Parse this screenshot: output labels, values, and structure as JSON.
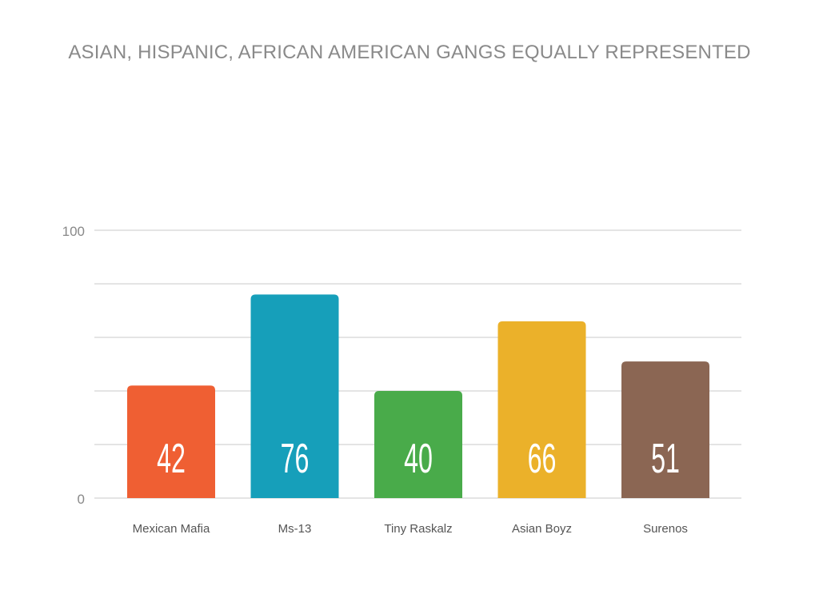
{
  "chart_data": {
    "type": "bar",
    "title": "ASIAN, HISPANIC, AFRICAN AMERICAN GANGS EQUALLY REPRESENTED",
    "categories": [
      "Mexican Mafia",
      "Ms-13",
      "Tiny Raskalz",
      "Asian Boyz",
      "Surenos"
    ],
    "values": [
      42,
      76,
      40,
      66,
      51
    ],
    "colors": [
      "#ef5f33",
      "#169fba",
      "#49ab4a",
      "#ebb12a",
      "#8b6653"
    ],
    "xlabel": "",
    "ylabel": "",
    "ylim": [
      0,
      100
    ],
    "y_tick_labels": [
      "0",
      "100"
    ],
    "gridlines": [
      0,
      20,
      40,
      60,
      80,
      100
    ],
    "grid": true,
    "legend": "none"
  }
}
